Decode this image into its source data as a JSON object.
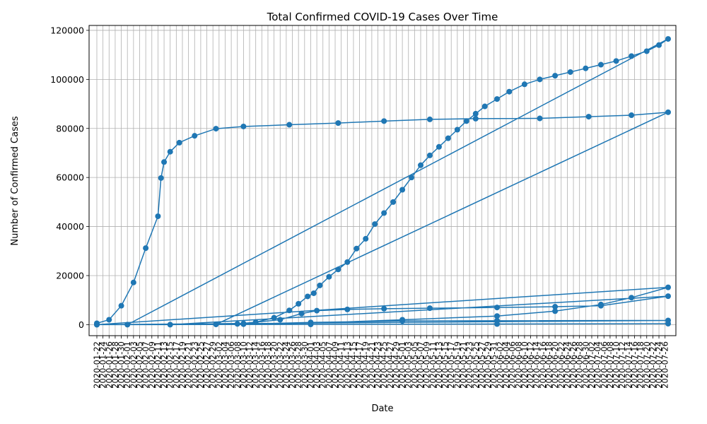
{
  "chart_data": {
    "type": "line",
    "title": "Total Confirmed COVID-19 Cases Over Time",
    "xlabel": "Date",
    "ylabel": "Number of Confirmed Cases",
    "ylim": [
      -4500,
      122000
    ],
    "yticks": [
      0,
      20000,
      40000,
      60000,
      80000,
      100000,
      120000
    ],
    "grid": true,
    "legend": "none",
    "line_color": "#1f77b4",
    "marker": "circle",
    "x_first_date": "2020-01-22",
    "x_last_date": "2020-07-27",
    "series": [
      {
        "points": [
          [
            "2020-01-22",
            548
          ],
          [
            "2020-01-26",
            2000
          ],
          [
            "2020-01-30",
            7700
          ],
          [
            "2020-02-03",
            17200
          ],
          [
            "2020-02-07",
            31200
          ],
          [
            "2020-02-11",
            44200
          ],
          [
            "2020-02-12",
            59800
          ],
          [
            "2020-02-13",
            66300
          ],
          [
            "2020-02-15",
            70500
          ],
          [
            "2020-02-18",
            74200
          ],
          [
            "2020-02-23",
            77000
          ],
          [
            "2020-03-01",
            79900
          ],
          [
            "2020-03-10",
            80800
          ],
          [
            "2020-03-25",
            81500
          ],
          [
            "2020-04-10",
            82200
          ],
          [
            "2020-04-25",
            83000
          ],
          [
            "2020-05-10",
            83700
          ],
          [
            "2020-05-25",
            84000
          ],
          [
            "2020-06-15",
            84100
          ],
          [
            "2020-07-01",
            84800
          ],
          [
            "2020-07-15",
            85400
          ],
          [
            "2020-07-27",
            86600
          ]
        ]
      },
      {
        "points": [
          [
            "2020-03-01",
            100
          ],
          [
            "2020-03-08",
            300
          ],
          [
            "2020-03-14",
            1000
          ],
          [
            "2020-03-20",
            2800
          ],
          [
            "2020-03-25",
            5800
          ],
          [
            "2020-03-28",
            8500
          ],
          [
            "2020-03-31",
            11500
          ],
          [
            "2020-04-02",
            12800
          ],
          [
            "2020-04-04",
            16000
          ],
          [
            "2020-04-07",
            19500
          ],
          [
            "2020-04-10",
            22500
          ],
          [
            "2020-04-13",
            25500
          ],
          [
            "2020-04-16",
            31000
          ],
          [
            "2020-04-19",
            35000
          ],
          [
            "2020-04-22",
            41000
          ],
          [
            "2020-04-25",
            45500
          ],
          [
            "2020-04-28",
            50000
          ],
          [
            "2020-05-01",
            55000
          ],
          [
            "2020-05-04",
            60000
          ],
          [
            "2020-05-07",
            65000
          ],
          [
            "2020-05-10",
            69000
          ],
          [
            "2020-05-13",
            72500
          ],
          [
            "2020-05-16",
            76000
          ],
          [
            "2020-05-19",
            79500
          ],
          [
            "2020-05-22",
            83000
          ],
          [
            "2020-05-25",
            86000
          ],
          [
            "2020-05-28",
            89000
          ],
          [
            "2020-06-01",
            92000
          ],
          [
            "2020-06-05",
            95000
          ],
          [
            "2020-06-10",
            98000
          ],
          [
            "2020-06-15",
            100000
          ],
          [
            "2020-06-20",
            101500
          ],
          [
            "2020-06-25",
            103000
          ],
          [
            "2020-06-30",
            104500
          ],
          [
            "2020-07-05",
            106000
          ],
          [
            "2020-07-10",
            107500
          ],
          [
            "2020-07-15",
            109500
          ],
          [
            "2020-07-20",
            111500
          ],
          [
            "2020-07-24",
            114000
          ],
          [
            "2020-07-27",
            116500
          ]
        ]
      },
      {
        "points": [
          [
            "2020-02-01",
            0
          ],
          [
            "2020-03-10",
            500
          ],
          [
            "2020-03-22",
            2000
          ],
          [
            "2020-03-29",
            4500
          ],
          [
            "2020-04-03",
            5700
          ],
          [
            "2020-04-13",
            6200
          ],
          [
            "2020-04-25",
            6500
          ],
          [
            "2020-05-10",
            6700
          ],
          [
            "2020-06-01",
            7000
          ],
          [
            "2020-06-20",
            7300
          ],
          [
            "2020-07-05",
            7700
          ],
          [
            "2020-07-27",
            11600
          ]
        ]
      },
      {
        "points": [
          [
            "2020-02-15",
            0
          ],
          [
            "2020-04-01",
            600
          ],
          [
            "2020-05-01",
            2000
          ],
          [
            "2020-06-01",
            3500
          ],
          [
            "2020-06-20",
            5500
          ],
          [
            "2020-07-05",
            8200
          ],
          [
            "2020-07-15",
            11000
          ],
          [
            "2020-07-27",
            15200
          ]
        ]
      },
      {
        "points": [
          [
            "2020-01-22",
            0
          ],
          [
            "2020-03-10",
            200
          ],
          [
            "2020-04-01",
            900
          ],
          [
            "2020-05-01",
            1500
          ],
          [
            "2020-06-01",
            1600
          ],
          [
            "2020-07-27",
            1700
          ]
        ]
      },
      {
        "points": [
          [
            "2020-01-22",
            0
          ],
          [
            "2020-04-01",
            100
          ],
          [
            "2020-06-01",
            250
          ],
          [
            "2020-07-27",
            400
          ]
        ]
      }
    ]
  }
}
